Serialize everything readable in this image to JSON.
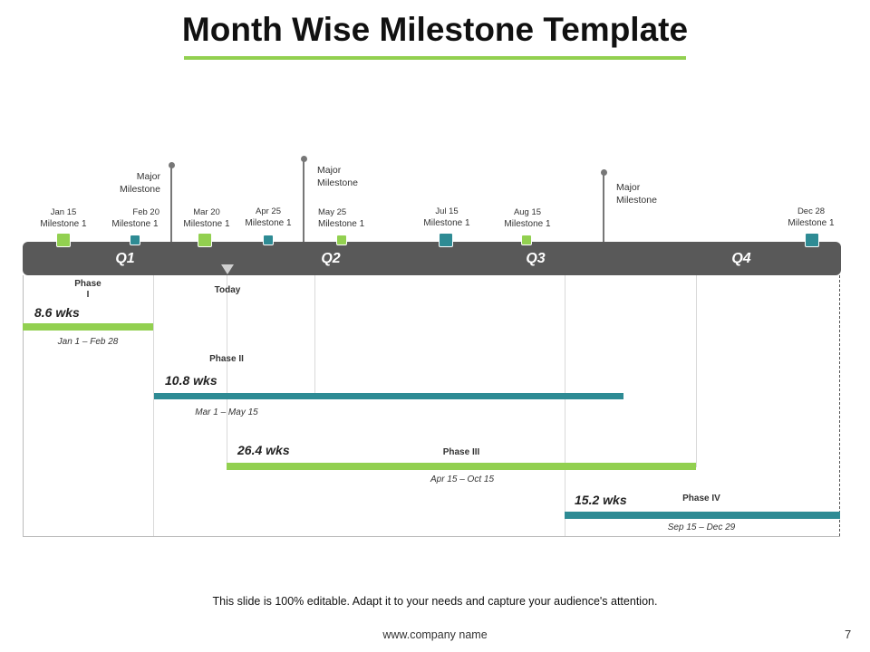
{
  "title": "Month Wise Milestone Template",
  "quarters": [
    "Q1",
    "Q2",
    "Q3",
    "Q4"
  ],
  "milestones": [
    {
      "date": "Jan 15",
      "label": "Milestone 1"
    },
    {
      "date": "Feb 20",
      "label": "Milestone 1"
    },
    {
      "date": "Mar 20",
      "label": "Milestone 1"
    },
    {
      "date": "Apr 25",
      "label": "Milestone 1"
    },
    {
      "date": "May 25",
      "label": "Milestone 1"
    },
    {
      "date": "Jul 15",
      "label": "Milestone 1"
    },
    {
      "date": "Aug 15",
      "label": "Milestone 1"
    },
    {
      "date": "Dec 28",
      "label": "Milestone 1"
    }
  ],
  "major_milestones": [
    {
      "line1": "Major",
      "line2": "Milestone"
    },
    {
      "line1": "Major",
      "line2": "Milestone"
    },
    {
      "line1": "Major",
      "line2": "Milestone"
    }
  ],
  "today_label": "Today",
  "phases": [
    {
      "name": "Phase I",
      "duration": "8.6 wks",
      "range": "Jan 1 – Feb 28"
    },
    {
      "name": "Phase II",
      "duration": "10.8 wks",
      "range": "Mar 1 – May 15"
    },
    {
      "name": "Phase III",
      "duration": "26.4 wks",
      "range": "Apr 15 – Oct 15"
    },
    {
      "name": "Phase IV",
      "duration": "15.2 wks",
      "range": "Sep 15 – Dec 29"
    }
  ],
  "footer": {
    "note": "This slide is 100% editable. Adapt it to your needs and capture your audience's attention.",
    "website": "www.company name",
    "page": "7"
  },
  "colors": {
    "green": "#92d050",
    "teal": "#2e8b94",
    "bar": "#595959"
  }
}
